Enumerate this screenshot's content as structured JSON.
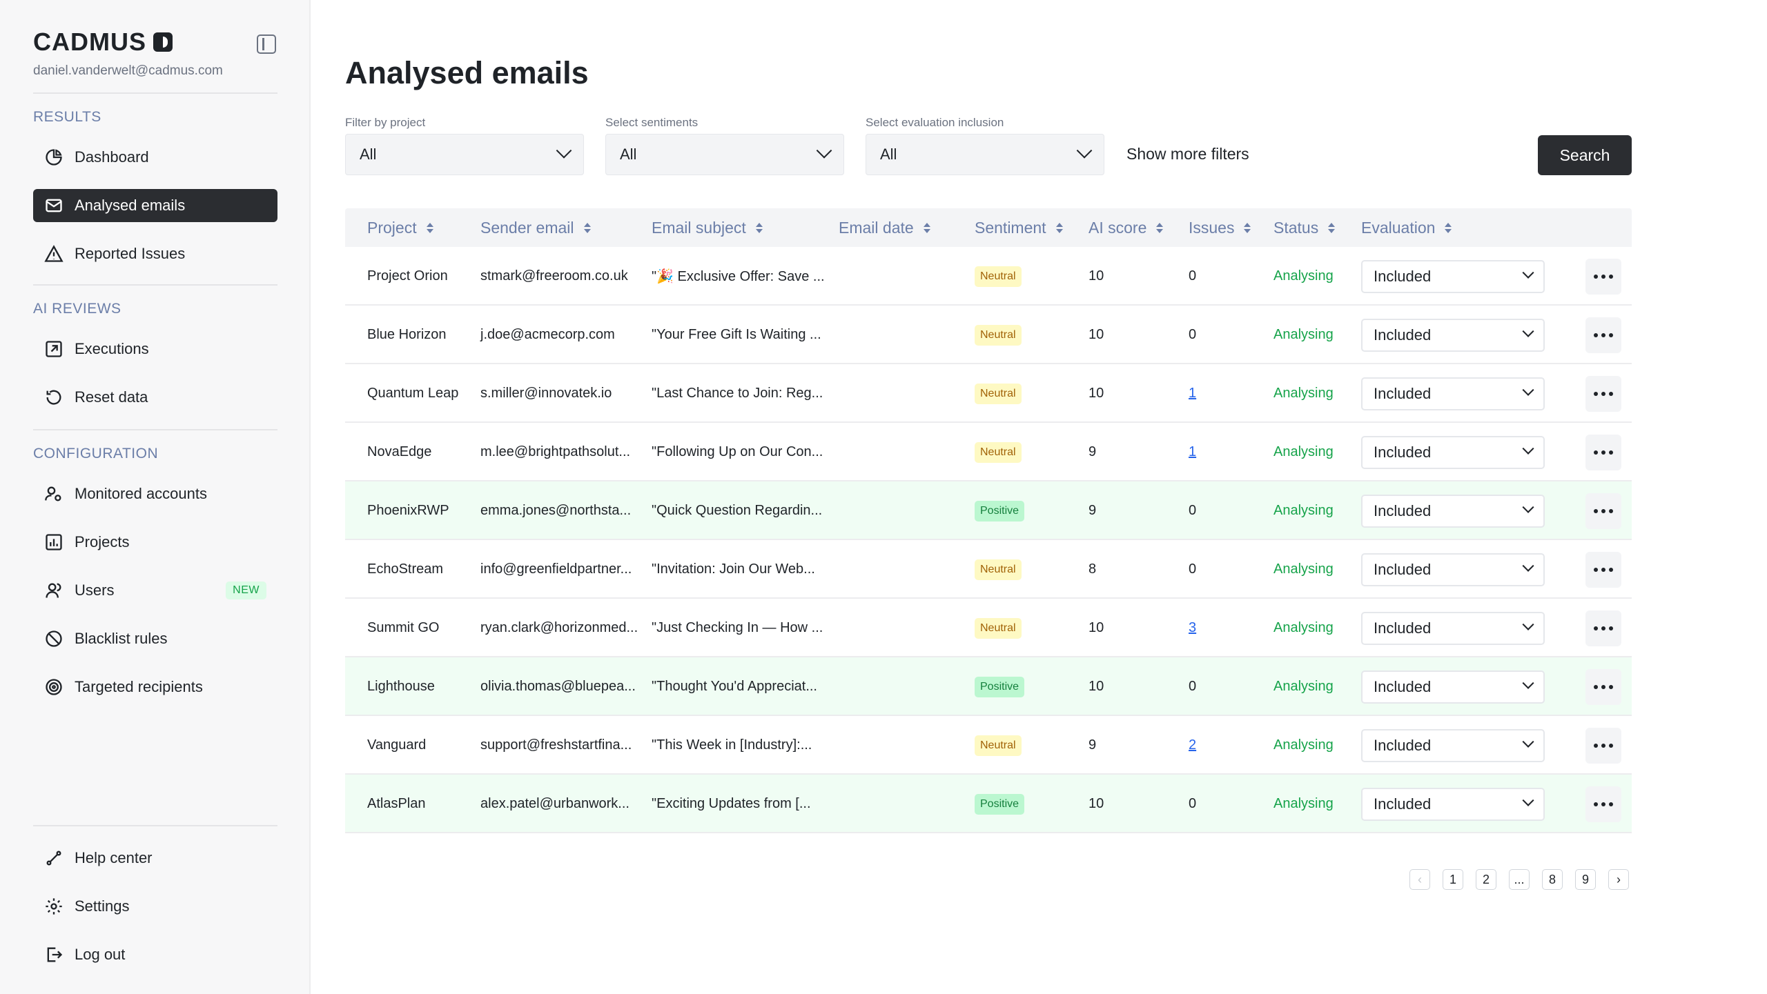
{
  "sidebar": {
    "brand": "CADMUS",
    "user_email": "daniel.vanderwelt@cadmus.com",
    "sections": [
      {
        "label": "RESULTS",
        "items": [
          {
            "label": "Dashboard",
            "icon": "pie-chart-icon"
          },
          {
            "label": "Analysed emails",
            "icon": "mail-icon",
            "active": true
          },
          {
            "label": "Reported Issues",
            "icon": "warning-icon"
          }
        ]
      },
      {
        "label": "AI REVIEWS",
        "items": [
          {
            "label": "Executions",
            "icon": "external-link-icon"
          },
          {
            "label": "Reset data",
            "icon": "reset-icon"
          }
        ]
      },
      {
        "label": "CONFIGURATION",
        "items": [
          {
            "label": "Monitored accounts",
            "icon": "users-settings-icon"
          },
          {
            "label": "Projects",
            "icon": "bar-chart-icon"
          },
          {
            "label": "Users",
            "icon": "users-icon",
            "badge": "NEW"
          },
          {
            "label": "Blacklist rules",
            "icon": "block-icon"
          },
          {
            "label": "Targeted recipients",
            "icon": "target-icon"
          }
        ]
      }
    ],
    "footer": [
      {
        "label": "Help center",
        "icon": "help-icon"
      },
      {
        "label": "Settings",
        "icon": "gear-icon"
      },
      {
        "label": "Log out",
        "icon": "logout-icon"
      }
    ]
  },
  "main": {
    "title": "Analysed emails",
    "filters": {
      "project_label": "Filter by project",
      "project_value": "All",
      "sentiment_label": "Select sentiments",
      "sentiment_value": "All",
      "eval_label": "Select evaluation inclusion",
      "eval_value": "All",
      "more": "Show more filters",
      "search": "Search"
    },
    "columns": [
      "Project",
      "Sender email",
      "Email subject",
      "Email date",
      "Sentiment",
      "AI score",
      "Issues",
      "Status",
      "Evaluation"
    ],
    "rows": [
      {
        "project": "Project Orion",
        "sender": "stmark@freeroom.co.uk",
        "subject": "\"🎉 Exclusive Offer: Save ...",
        "date": "",
        "sentiment": "Neutral",
        "score": "10",
        "issues": "0",
        "status": "Analysing",
        "evaluation": "Included"
      },
      {
        "project": "Blue Horizon",
        "sender": "j.doe@acmecorp.com",
        "subject": "\"Your Free Gift Is Waiting ...",
        "date": "",
        "sentiment": "Neutral",
        "score": "10",
        "issues": "0",
        "status": "Analysing",
        "evaluation": "Included"
      },
      {
        "project": "Quantum Leap",
        "sender": "s.miller@innovatek.io",
        "subject": "\"Last Chance to Join: Reg...",
        "date": "",
        "sentiment": "Neutral",
        "score": "10",
        "issues": "1",
        "status": "Analysing",
        "evaluation": "Included"
      },
      {
        "project": "NovaEdge",
        "sender": "m.lee@brightpathsolut...",
        "subject": "\"Following Up on Our Con...",
        "date": "",
        "sentiment": "Neutral",
        "score": "9",
        "issues": "1",
        "status": "Analysing",
        "evaluation": "Included"
      },
      {
        "project": "PhoenixRWP",
        "sender": "emma.jones@northsta...",
        "subject": "\"Quick Question Regardin...",
        "date": "",
        "sentiment": "Positive",
        "score": "9",
        "issues": "0",
        "status": "Analysing",
        "evaluation": "Included"
      },
      {
        "project": "EchoStream",
        "sender": "info@greenfieldpartner...",
        "subject": "\"Invitation: Join Our Web...",
        "date": "",
        "sentiment": "Neutral",
        "score": "8",
        "issues": "0",
        "status": "Analysing",
        "evaluation": "Included"
      },
      {
        "project": "Summit GO",
        "sender": "ryan.clark@horizonmed...",
        "subject": "\"Just Checking In — How ...",
        "date": "",
        "sentiment": "Neutral",
        "score": "10",
        "issues": "3",
        "status": "Analysing",
        "evaluation": "Included"
      },
      {
        "project": "Lighthouse",
        "sender": "olivia.thomas@bluepea...",
        "subject": "\"Thought You'd Appreciat...",
        "date": "",
        "sentiment": "Positive",
        "score": "10",
        "issues": "0",
        "status": "Analysing",
        "evaluation": "Included"
      },
      {
        "project": "Vanguard",
        "sender": "support@freshstartfina...",
        "subject": "\"This Week in [Industry]:...",
        "date": "",
        "sentiment": "Neutral",
        "score": "9",
        "issues": "2",
        "status": "Analysing",
        "evaluation": "Included"
      },
      {
        "project": "AtlasPlan",
        "sender": "alex.patel@urbanwork...",
        "subject": "\"Exciting Updates from [...",
        "date": "",
        "sentiment": "Positive",
        "score": "10",
        "issues": "0",
        "status": "Analysing",
        "evaluation": "Included"
      }
    ],
    "pagination": [
      "1",
      "2",
      "...",
      "8",
      "9"
    ]
  }
}
